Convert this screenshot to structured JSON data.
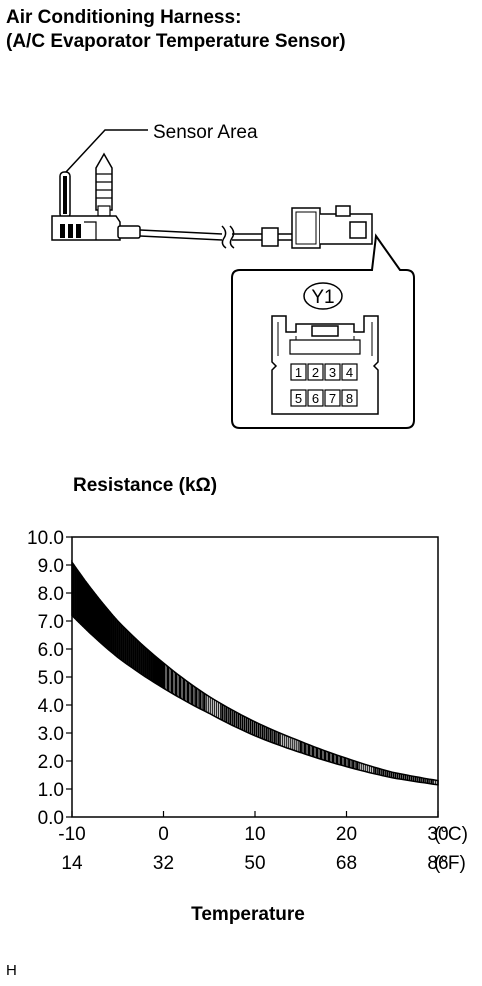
{
  "header": {
    "title_line1": "Air Conditioning Harness:",
    "title_line2": "(A/C Evaporator Temperature Sensor)"
  },
  "diagram": {
    "sensor_label": "Sensor Area",
    "connector_code": "Y1",
    "pins_top": [
      "1",
      "2",
      "3",
      "4"
    ],
    "pins_bottom": [
      "5",
      "6",
      "7",
      "8"
    ]
  },
  "chart_data": {
    "type": "area",
    "title": "Resistance (kΩ)",
    "xlabel": "Temperature",
    "ylabel": "",
    "xlim": [
      -10,
      30
    ],
    "ylim": [
      0,
      10
    ],
    "x_ticks": [
      "-10",
      "0",
      "10",
      "20",
      "30"
    ],
    "x_ticks_secondary": [
      "14",
      "32",
      "50",
      "68",
      "86"
    ],
    "x_unit": "(°C)",
    "x_unit_secondary": "(°F)",
    "y_ticks": [
      "0.0",
      "1.0",
      "2.0",
      "3.0",
      "4.0",
      "5.0",
      "6.0",
      "7.0",
      "8.0",
      "9.0",
      "10.0"
    ],
    "series": [
      {
        "x": [
          -10,
          -5,
          0,
          5,
          10,
          15,
          20,
          25,
          30
        ],
        "upper": [
          9.1,
          7.0,
          5.5,
          4.3,
          3.4,
          2.7,
          2.1,
          1.6,
          1.3
        ],
        "lower": [
          7.2,
          5.7,
          4.6,
          3.7,
          2.9,
          2.3,
          1.8,
          1.4,
          1.15
        ]
      }
    ],
    "grid": false
  },
  "footer": {
    "code": "H"
  }
}
